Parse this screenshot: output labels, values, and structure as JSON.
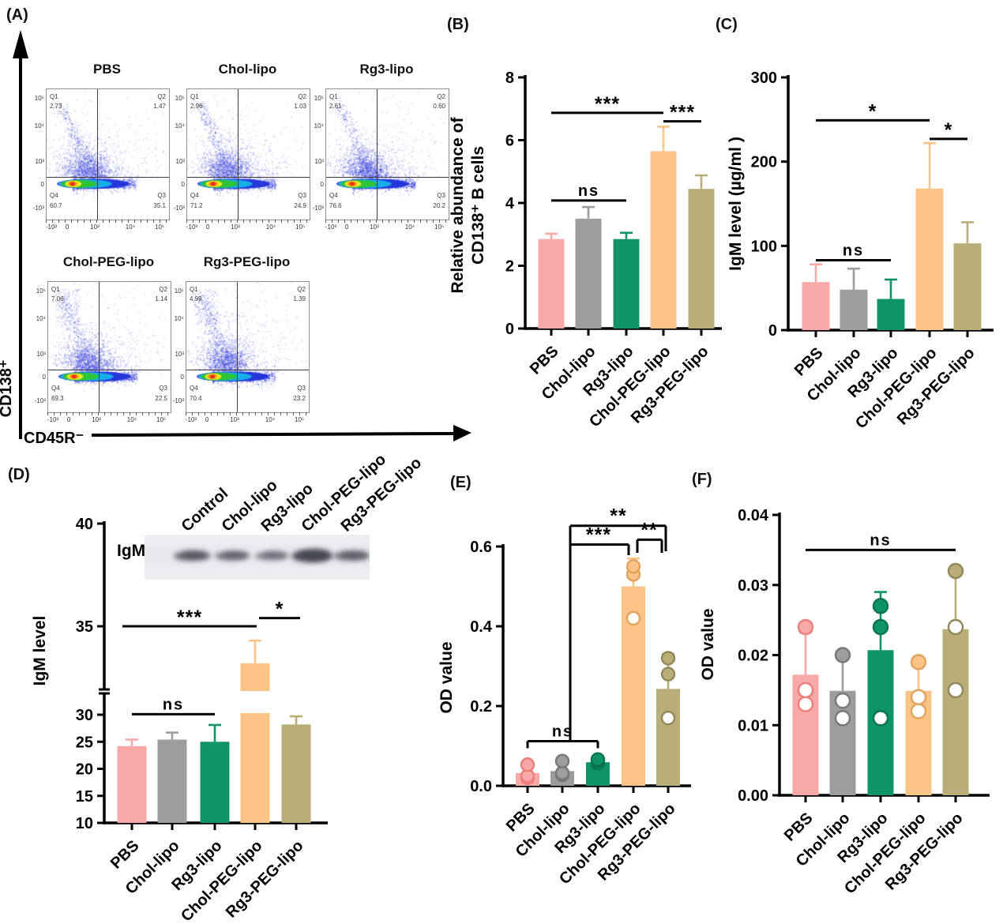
{
  "figure": {
    "panels": {
      "A": "(A)",
      "B": "(B)",
      "C": "(C)",
      "D": "(D)",
      "E": "(E)",
      "F": "(F)"
    }
  },
  "bar_colors": [
    "#F8A8A6",
    "#9D9D9D",
    "#0E9466",
    "#FBC386",
    "#B9AE77"
  ],
  "bar_colors_dark": [
    "#EC7E7C",
    "#787878",
    "#0A7450",
    "#E2A35E",
    "#93885A"
  ],
  "flow": {
    "y_axis_label": "CD138⁺",
    "x_axis_label": "CD45R⁻",
    "x_ticks": [
      "-10³",
      "0",
      "10³",
      "10⁴",
      "10⁵"
    ],
    "y_ticks": [
      "10⁵",
      "10⁴",
      "10³",
      "0",
      "-10³"
    ],
    "plots": [
      {
        "title": "PBS",
        "q1_label": "Q1",
        "q1": "2.73",
        "q2_label": "Q2",
        "q2": "1.47",
        "q3_label": "Q3",
        "q3": "35.1",
        "q4_label": "Q4",
        "q4": "60.7"
      },
      {
        "title": "Chol-lipo",
        "q1_label": "Q1",
        "q1": "2.96",
        "q2_label": "Q2",
        "q2": "1.03",
        "q3_label": "Q3",
        "q3": "24.9",
        "q4_label": "Q4",
        "q4": "71.2"
      },
      {
        "title": "Rg3-lipo",
        "q1_label": "Q1",
        "q1": "2.61",
        "q2_label": "Q2",
        "q2": "0.60",
        "q3_label": "Q3",
        "q3": "20.2",
        "q4_label": "Q4",
        "q4": "76.6"
      },
      {
        "title": "Chol-PEG-lipo",
        "q1_label": "Q1",
        "q1": "7.06",
        "q2_label": "Q2",
        "q2": "1.14",
        "q3_label": "Q3",
        "q3": "22.5",
        "q4_label": "Q4",
        "q4": "69.3"
      },
      {
        "title": "Rg3-PEG-lipo",
        "q1_label": "Q1",
        "q1": "4.99",
        "q2_label": "Q2",
        "q2": "1.39",
        "q3_label": "Q3",
        "q3": "23.2",
        "q4_label": "Q4",
        "q4": "70.4"
      }
    ]
  },
  "chart_data": [
    {
      "id": "B",
      "type": "bar",
      "title": "",
      "xlabel": "",
      "ylabel": "Relative abundance of CD138⁺ B cells",
      "ylabel_lines": [
        "Relative abundance of",
        "CD138⁺ B cells"
      ],
      "categories": [
        "PBS",
        "Chol-lipo",
        "Rg3-lipo",
        "Chol-PEG-lipo",
        "Rg3-PEG-lipo"
      ],
      "values": [
        2.85,
        3.5,
        2.85,
        5.65,
        4.45
      ],
      "errors_up": [
        0.17,
        0.37,
        0.2,
        0.78,
        0.43
      ],
      "ylim": [
        0,
        8
      ],
      "yticks": [
        [
          0,
          "0"
        ],
        [
          2,
          "2"
        ],
        [
          4,
          "4"
        ],
        [
          6,
          "6"
        ],
        [
          8,
          "8"
        ]
      ],
      "significance": [
        {
          "label": "ns",
          "from": 0,
          "to": 2,
          "y": 4.08
        },
        {
          "label": "***",
          "from": 0,
          "to": 3,
          "y": 6.87
        },
        {
          "label": "***",
          "from": 3,
          "to": 4,
          "y": 6.6
        }
      ]
    },
    {
      "id": "C",
      "type": "bar",
      "title": "",
      "xlabel": "",
      "ylabel": "IgM level (µg/ml )",
      "ylabel_lines": [
        "IgM level (µg/ml )"
      ],
      "categories": [
        "PBS",
        "Chol-lipo",
        "Rg3-lipo",
        "Chol-PEG-lipo",
        "Rg3-PEG-lipo"
      ],
      "values": [
        57,
        48,
        37,
        168,
        103
      ],
      "errors_up": [
        21,
        25,
        23,
        54,
        25
      ],
      "ylim": [
        0,
        300
      ],
      "yticks": [
        [
          0,
          "0"
        ],
        [
          100,
          "100"
        ],
        [
          200,
          "200"
        ],
        [
          300,
          "300"
        ]
      ],
      "significance": [
        {
          "label": "ns",
          "from": 0,
          "to": 2,
          "y": 83
        },
        {
          "label": "*",
          "from": 0,
          "to": 3,
          "y": 249
        },
        {
          "label": "*",
          "from": 3,
          "to": 4,
          "y": 227
        }
      ]
    },
    {
      "id": "D",
      "type": "bar",
      "title": "",
      "xlabel": "",
      "ylabel": "IgM level",
      "ylabel_lines": [
        "IgM level"
      ],
      "categories": [
        "PBS",
        "Chol-lipo",
        "Rg3-lipo",
        "Chol-PEG-lipo",
        "Rg3-PEG-lipo"
      ],
      "values": [
        24.2,
        25.4,
        25.0,
        33.2,
        28.2
      ],
      "errors_up": [
        1.2,
        1.3,
        3.1,
        1.1,
        1.5
      ],
      "ylim": [
        10,
        40
      ],
      "axis_break": {
        "lower_range": [
          10,
          30
        ],
        "upper_range": [
          35,
          40
        ]
      },
      "yticks_lower": [
        [
          10,
          "10"
        ],
        [
          15,
          "15"
        ],
        [
          20,
          "20"
        ],
        [
          25,
          "25"
        ],
        [
          30,
          "30"
        ]
      ],
      "yticks_upper": [
        [
          35,
          "35"
        ],
        [
          40,
          "40"
        ]
      ],
      "significance": [
        {
          "label": "ns",
          "from": 0,
          "to": 2,
          "y": 30.1,
          "seg": "lower"
        },
        {
          "label": "***",
          "from": 0,
          "to": 3,
          "y": 35.0,
          "seg": "upper"
        },
        {
          "label": "*",
          "from": 3,
          "to": 4,
          "y": 35.4,
          "seg": "upper"
        }
      ],
      "blot": {
        "label": "IgM",
        "lanes": [
          "Control",
          "Chol-lipo",
          "Rg3-lipo",
          "Chol-PEG-lipo",
          "Rg3-PEG-lipo"
        ]
      }
    },
    {
      "id": "E",
      "type": "bar",
      "title": "",
      "xlabel": "",
      "ylabel": "OD value",
      "ylabel_lines": [
        "OD value"
      ],
      "categories": [
        "PBS",
        "Chol-lipo",
        "Rg3-lipo",
        "Chol-PEG-lipo",
        "Rg3-PEG-lipo"
      ],
      "values": [
        0.032,
        0.037,
        0.059,
        0.5,
        0.243
      ],
      "err_low": [
        0.02,
        0.027,
        0.055,
        0.43,
        0.17
      ],
      "err_high": [
        0.053,
        0.062,
        0.066,
        0.57,
        0.33
      ],
      "points": [
        [
          0.02,
          0.025,
          0.053
        ],
        [
          0.027,
          0.032,
          0.062
        ],
        [
          0.057,
          0.063,
          0.066
        ],
        [
          0.42,
          0.53,
          0.55
        ],
        [
          0.17,
          0.28,
          0.32
        ]
      ],
      "ylim": [
        0,
        0.6
      ],
      "yticks": [
        [
          0,
          "0.0"
        ],
        [
          0.2,
          "0.2"
        ],
        [
          0.4,
          "0.4"
        ],
        [
          0.6,
          "0.6"
        ]
      ],
      "significance": [
        {
          "label": "ns",
          "from": 0,
          "to": 2,
          "y": 0.112
        },
        {
          "label": "***",
          "from": 1,
          "to": 3,
          "y": 0.605
        },
        {
          "label": "**",
          "from": 1,
          "to": 4,
          "y": 0.652
        },
        {
          "label": "**",
          "from": 3,
          "to": 4,
          "y": 0.617
        }
      ]
    },
    {
      "id": "F",
      "type": "bar",
      "title": "",
      "xlabel": "",
      "ylabel": "OD value",
      "ylabel_lines": [
        "OD value"
      ],
      "categories": [
        "PBS",
        "Chol-lipo",
        "Rg3-lipo",
        "Chol-PEG-lipo",
        "Rg3-PEG-lipo"
      ],
      "values": [
        0.0172,
        0.0149,
        0.0207,
        0.0149,
        0.0237
      ],
      "err_low": [
        0.0113,
        0.0105,
        0.012,
        0.0113,
        0.015
      ],
      "err_high": [
        0.0232,
        0.0195,
        0.029,
        0.0185,
        0.032
      ],
      "points": [
        [
          0.013,
          0.015,
          0.024
        ],
        [
          0.011,
          0.0135,
          0.02
        ],
        [
          0.011,
          0.024,
          0.027
        ],
        [
          0.012,
          0.014,
          0.019
        ],
        [
          0.015,
          0.024,
          0.032
        ]
      ],
      "ylim": [
        0,
        0.04
      ],
      "yticks": [
        [
          0,
          "0.00"
        ],
        [
          0.01,
          "0.01"
        ],
        [
          0.02,
          "0.02"
        ],
        [
          0.03,
          "0.03"
        ],
        [
          0.04,
          "0.04"
        ]
      ],
      "significance": [
        {
          "label": "ns",
          "from": 0,
          "to": 4,
          "y": 0.035
        }
      ]
    }
  ]
}
